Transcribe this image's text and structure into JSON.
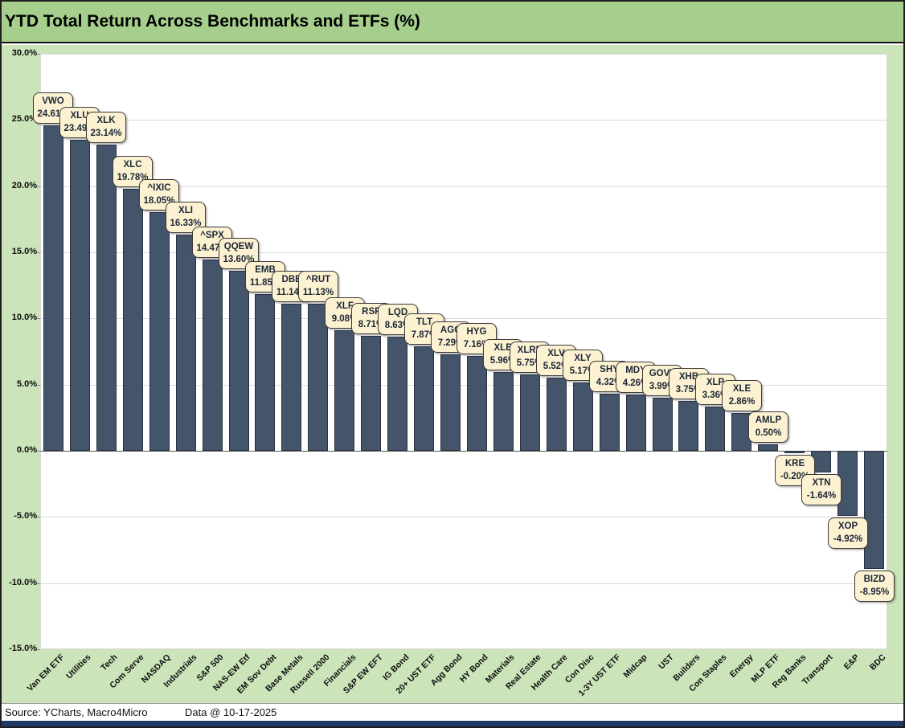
{
  "header": {
    "title": "YTD Total Return Across Benchmarks and ETFs (%)"
  },
  "footer": {
    "source": "Source: YCharts, Macro4Micro",
    "data_date": "Data @ 10-17-2025"
  },
  "colors": {
    "title_bg": "#a6ce8c",
    "surround_bg": "#cbe4ba",
    "plot_bg": "#ffffff",
    "bar_fill": "#44546a",
    "bar_border": "#28313f",
    "callout_bg": "#fcf2d2",
    "callout_border": "#3b3b3b",
    "gridline": "#d9d9d9",
    "bottom_bar": "#1f3864"
  },
  "chart_data": {
    "type": "bar",
    "title": "YTD Total Return Across Benchmarks and ETFs (%)",
    "xlabel": "",
    "ylabel": "",
    "ylim": [
      -15,
      30
    ],
    "ytick_step": 5,
    "grid": true,
    "legend": false,
    "y_ticks": [
      "30.0%",
      "25.0%",
      "20.0%",
      "15.0%",
      "10.0%",
      "5.0%",
      "0.0%",
      "-5.0%",
      "-10.0%",
      "-15.0%"
    ],
    "categories": [
      "Van EM ETF",
      "Utilities",
      "Tech",
      "Com Serve",
      "NASDAQ",
      "Industrials",
      "S&P 500",
      "NAS-EW Etf",
      "EM Sov Debt",
      "Base Metals",
      "Russell 2000",
      "Financials",
      "S&P EW EFT",
      "IG Bond",
      "20+ UST ETF",
      "Agg Bond",
      "HY Bond",
      "Materials",
      "Real Estate",
      "Health Care",
      "Con Disc",
      "1-3Y UST ETF",
      "Midcap",
      "UST",
      "Builders",
      "Con Staples",
      "Energy",
      "MLP ETF",
      "Reg Banks",
      "Transport",
      "E&P",
      "BDC"
    ],
    "points": [
      {
        "category": "Van EM ETF",
        "ticker": "VWO",
        "value": 24.61,
        "value_label": "24.61%"
      },
      {
        "category": "Utilities",
        "ticker": "XLU",
        "value": 23.49,
        "value_label": "23.49%"
      },
      {
        "category": "Tech",
        "ticker": "XLK",
        "value": 23.14,
        "value_label": "23.14%"
      },
      {
        "category": "Com Serve",
        "ticker": "XLC",
        "value": 19.78,
        "value_label": "19.78%"
      },
      {
        "category": "NASDAQ",
        "ticker": "^IXIC",
        "value": 18.05,
        "value_label": "18.05%"
      },
      {
        "category": "Industrials",
        "ticker": "XLI",
        "value": 16.33,
        "value_label": "16.33%"
      },
      {
        "category": "S&P 500",
        "ticker": "^SPX",
        "value": 14.47,
        "value_label": "14.47%"
      },
      {
        "category": "NAS-EW Etf",
        "ticker": "QQEW",
        "value": 13.6,
        "value_label": "13.60%"
      },
      {
        "category": "EM Sov Debt",
        "ticker": "EMB",
        "value": 11.85,
        "value_label": "11.85%"
      },
      {
        "category": "Base Metals",
        "ticker": "DBB",
        "value": 11.14,
        "value_label": "11.14%"
      },
      {
        "category": "Russell 2000",
        "ticker": "^RUT",
        "value": 11.13,
        "value_label": "11.13%"
      },
      {
        "category": "Financials",
        "ticker": "XLF",
        "value": 9.08,
        "value_label": "9.08%"
      },
      {
        "category": "S&P EW EFT",
        "ticker": "RSP",
        "value": 8.71,
        "value_label": "8.71%"
      },
      {
        "category": "IG Bond",
        "ticker": "LQD",
        "value": 8.63,
        "value_label": "8.63%"
      },
      {
        "category": "20+ UST ETF",
        "ticker": "TLT",
        "value": 7.87,
        "value_label": "7.87%"
      },
      {
        "category": "Agg Bond",
        "ticker": "AGG",
        "value": 7.29,
        "value_label": "7.29%"
      },
      {
        "category": "HY Bond",
        "ticker": "HYG",
        "value": 7.16,
        "value_label": "7.16%"
      },
      {
        "category": "Materials",
        "ticker": "XLB",
        "value": 5.96,
        "value_label": "5.96%"
      },
      {
        "category": "Real Estate",
        "ticker": "XLRE",
        "value": 5.75,
        "value_label": "5.75%"
      },
      {
        "category": "Health Care",
        "ticker": "XLV",
        "value": 5.52,
        "value_label": "5.52%"
      },
      {
        "category": "Con Disc",
        "ticker": "XLY",
        "value": 5.17,
        "value_label": "5.17%"
      },
      {
        "category": "1-3Y UST ETF",
        "ticker": "SHY",
        "value": 4.32,
        "value_label": "4.32%"
      },
      {
        "category": "Midcap",
        "ticker": "MDY",
        "value": 4.26,
        "value_label": "4.26%"
      },
      {
        "category": "UST",
        "ticker": "GOVT",
        "value": 3.99,
        "value_label": "3.99%"
      },
      {
        "category": "Builders",
        "ticker": "XHB",
        "value": 3.75,
        "value_label": "3.75%"
      },
      {
        "category": "Con Staples",
        "ticker": "XLP",
        "value": 3.36,
        "value_label": "3.36%"
      },
      {
        "category": "Energy",
        "ticker": "XLE",
        "value": 2.86,
        "value_label": "2.86%"
      },
      {
        "category": "MLP ETF",
        "ticker": "AMLP",
        "value": 0.5,
        "value_label": "0.50%"
      },
      {
        "category": "Reg Banks",
        "ticker": "KRE",
        "value": -0.2,
        "value_label": "-0.20%"
      },
      {
        "category": "Transport",
        "ticker": "XTN",
        "value": -1.64,
        "value_label": "-1.64%"
      },
      {
        "category": "E&P",
        "ticker": "XOP",
        "value": -4.92,
        "value_label": "-4.92%"
      },
      {
        "category": "BDC",
        "ticker": "BIZD",
        "value": -8.95,
        "value_label": "-8.95%"
      }
    ]
  }
}
